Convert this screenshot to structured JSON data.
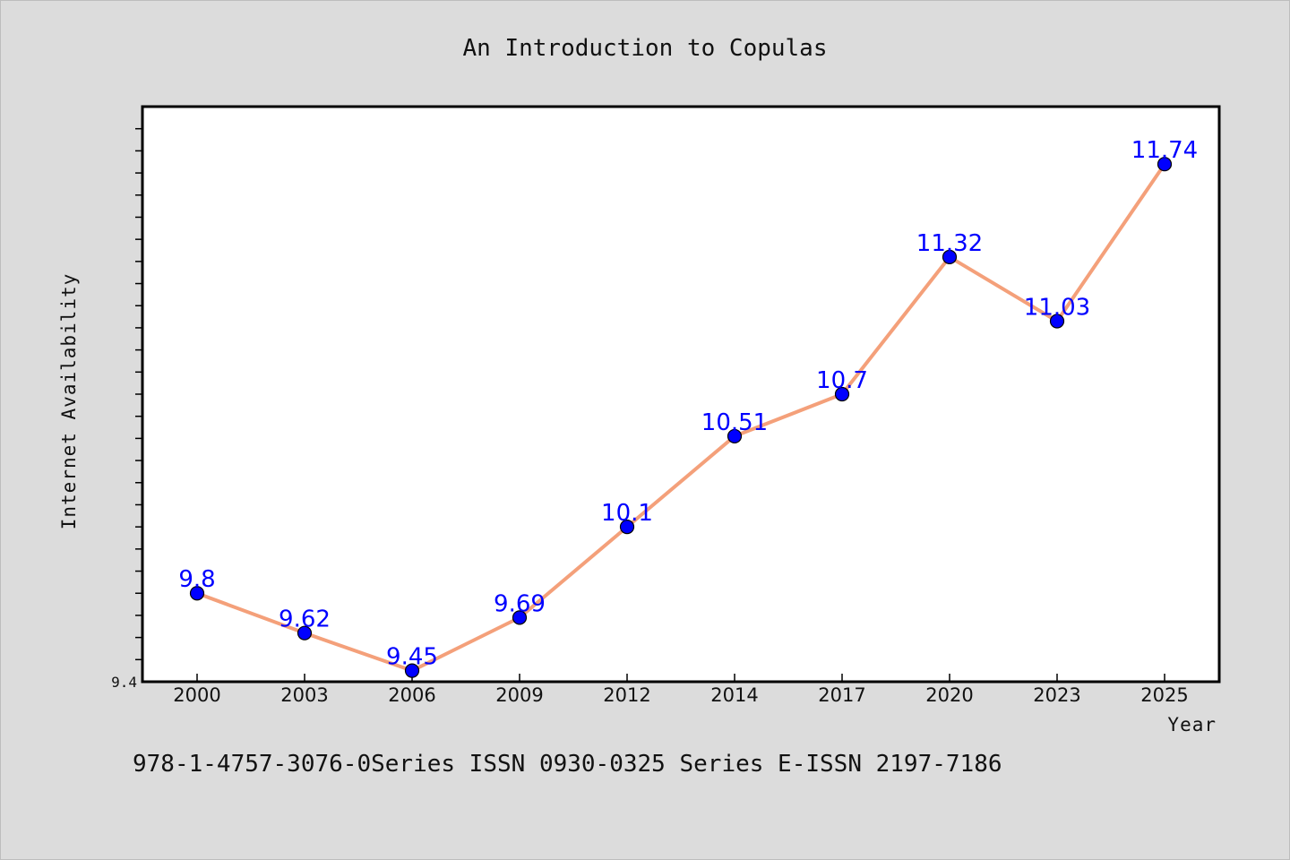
{
  "chart_data": {
    "type": "line",
    "title": "An Introduction to Copulas",
    "xlabel": "Year",
    "ylabel": "Internet Availability",
    "categories": [
      "2000",
      "2003",
      "2006",
      "2009",
      "2012",
      "2014",
      "2017",
      "2020",
      "2023",
      "2025"
    ],
    "series": [
      {
        "values": [
          9.8,
          9.62,
          9.45,
          9.69,
          10.1,
          10.51,
          10.7,
          11.32,
          11.03,
          11.74
        ],
        "data_labels": [
          "9.8",
          "9.62",
          "9.45",
          "9.69",
          "10.1",
          "10.51",
          "10.7",
          "11.32",
          "11.03",
          "11.74"
        ]
      }
    ],
    "ylim": [
      9.4,
      12.0
    ],
    "yticks_labeled": [
      {
        "value": 9.4,
        "label": "9.4"
      }
    ],
    "yticks_minor_step": 0.1,
    "grid": false,
    "colors": {
      "line": "#f4a07a",
      "marker": "#0000ff",
      "data_label": "#0000ff",
      "page_background": "#dcdcdc",
      "plot_background": "#ffffff"
    },
    "footer": "978-1-4757-3076-0Series ISSN 0930-0325 Series E-ISSN 2197-7186"
  }
}
